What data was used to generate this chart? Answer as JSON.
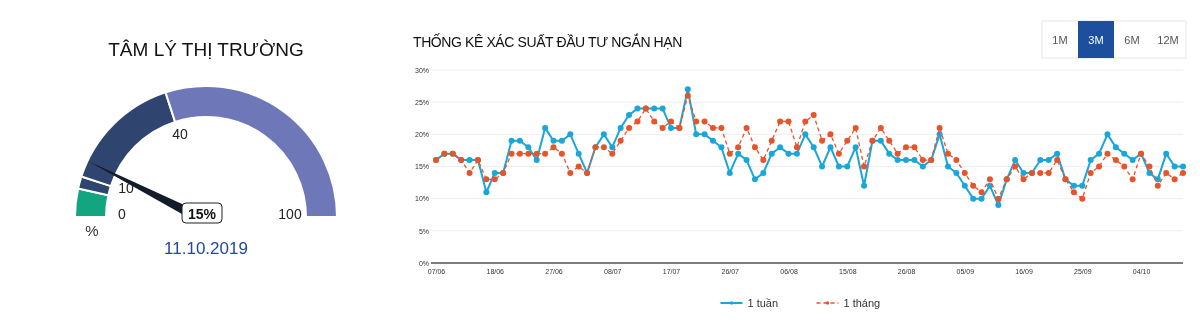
{
  "chart_data": [
    {
      "type": "donut",
      "title": "TÂM LÝ THỊ TRƯỜNG",
      "categories": [
        "0",
        null,
        "10",
        "40"
      ],
      "values": [
        7,
        3,
        30,
        60
      ],
      "colors": [
        "#12a57f",
        "#2f4570",
        "#2f4570",
        "#6e78b8"
      ],
      "needle": "10",
      "annotations": [
        "15%",
        "11.10.2019",
        "%",
        "100"
      ]
    },
    {
      "type": "line",
      "title": "THỐNG KÊ XÁC SUẤT ĐẦU TƯ NGẮN HẠN",
      "categories": [
        "07/06",
        null,
        null,
        null,
        null,
        null,
        null,
        "18/06",
        null,
        null,
        null,
        null,
        null,
        null,
        "27/06",
        null,
        null,
        null,
        null,
        null,
        null,
        "08/07",
        null,
        null,
        null,
        null,
        null,
        null,
        "17/07",
        null,
        null,
        null,
        null,
        null,
        null,
        "26/07",
        null,
        null,
        null,
        null,
        null,
        null,
        "06/08",
        null,
        null,
        null,
        null,
        null,
        null,
        "15/08",
        null,
        null,
        null,
        null,
        null,
        null,
        "26/08",
        null,
        null,
        null,
        null,
        null,
        null,
        "05/09",
        null,
        null,
        null,
        null,
        null,
        null,
        "16/09",
        null,
        null,
        null,
        null,
        null,
        null,
        "25/09",
        null,
        null,
        null,
        null,
        null,
        null,
        "04/10",
        null,
        null,
        null,
        null,
        null
      ],
      "ylim": [
        0,
        30
      ],
      "yticks": [
        {
          "value": 0,
          "label": "0%"
        },
        {
          "value": 5,
          "label": "5%"
        },
        {
          "value": 10,
          "label": "10%"
        },
        {
          "value": 15,
          "label": "15%"
        },
        {
          "value": 20,
          "label": "20%"
        },
        {
          "value": 25,
          "label": "25%"
        },
        {
          "value": 30,
          "label": "30%"
        }
      ],
      "grid": "y",
      "legend": "bottom",
      "marker": "circle",
      "series": [
        {
          "name": "1 tuần",
          "color": "#1aa6d9",
          "line_style": "solid",
          "values": [
            16,
            17,
            17,
            16,
            16,
            16,
            11,
            14,
            14,
            19,
            19,
            18,
            16,
            21,
            19,
            19,
            20,
            17,
            14,
            18,
            20,
            18,
            21,
            23,
            24,
            24,
            24,
            24,
            21,
            21,
            27,
            20,
            20,
            19,
            18,
            14,
            17,
            16,
            13,
            14,
            17,
            18,
            17,
            17,
            20,
            18,
            15,
            18,
            15,
            15,
            18,
            12,
            19,
            19,
            17,
            16,
            16,
            16,
            15,
            16,
            20,
            15,
            14,
            12,
            10,
            10,
            12,
            9,
            13,
            16,
            14,
            14,
            16,
            16,
            17,
            13,
            12,
            12,
            16,
            17,
            20,
            18,
            17,
            16,
            17,
            14,
            13,
            17,
            15,
            15
          ]
        },
        {
          "name": "1 tháng",
          "color": "#e8542a",
          "line_style": "dashed",
          "values": [
            16,
            17,
            17,
            16,
            14,
            16,
            13,
            13,
            14,
            17,
            17,
            17,
            17,
            17,
            18,
            17,
            14,
            15,
            14,
            18,
            18,
            17,
            19,
            21,
            22,
            24,
            22,
            21,
            22,
            21,
            26,
            22,
            22,
            21,
            21,
            17,
            18,
            21,
            18,
            16,
            19,
            22,
            22,
            18,
            22,
            23,
            19,
            20,
            17,
            19,
            21,
            15,
            19,
            21,
            19,
            17,
            18,
            18,
            16,
            16,
            21,
            17,
            16,
            14,
            12,
            11,
            13,
            10,
            13,
            15,
            13,
            14,
            14,
            14,
            16,
            13,
            11,
            10,
            14,
            15,
            17,
            16,
            15,
            13,
            17,
            15,
            12,
            14,
            13,
            14
          ]
        }
      ],
      "annotations": [
        "1M",
        "3M",
        "6M",
        "12M"
      ]
    }
  ]
}
